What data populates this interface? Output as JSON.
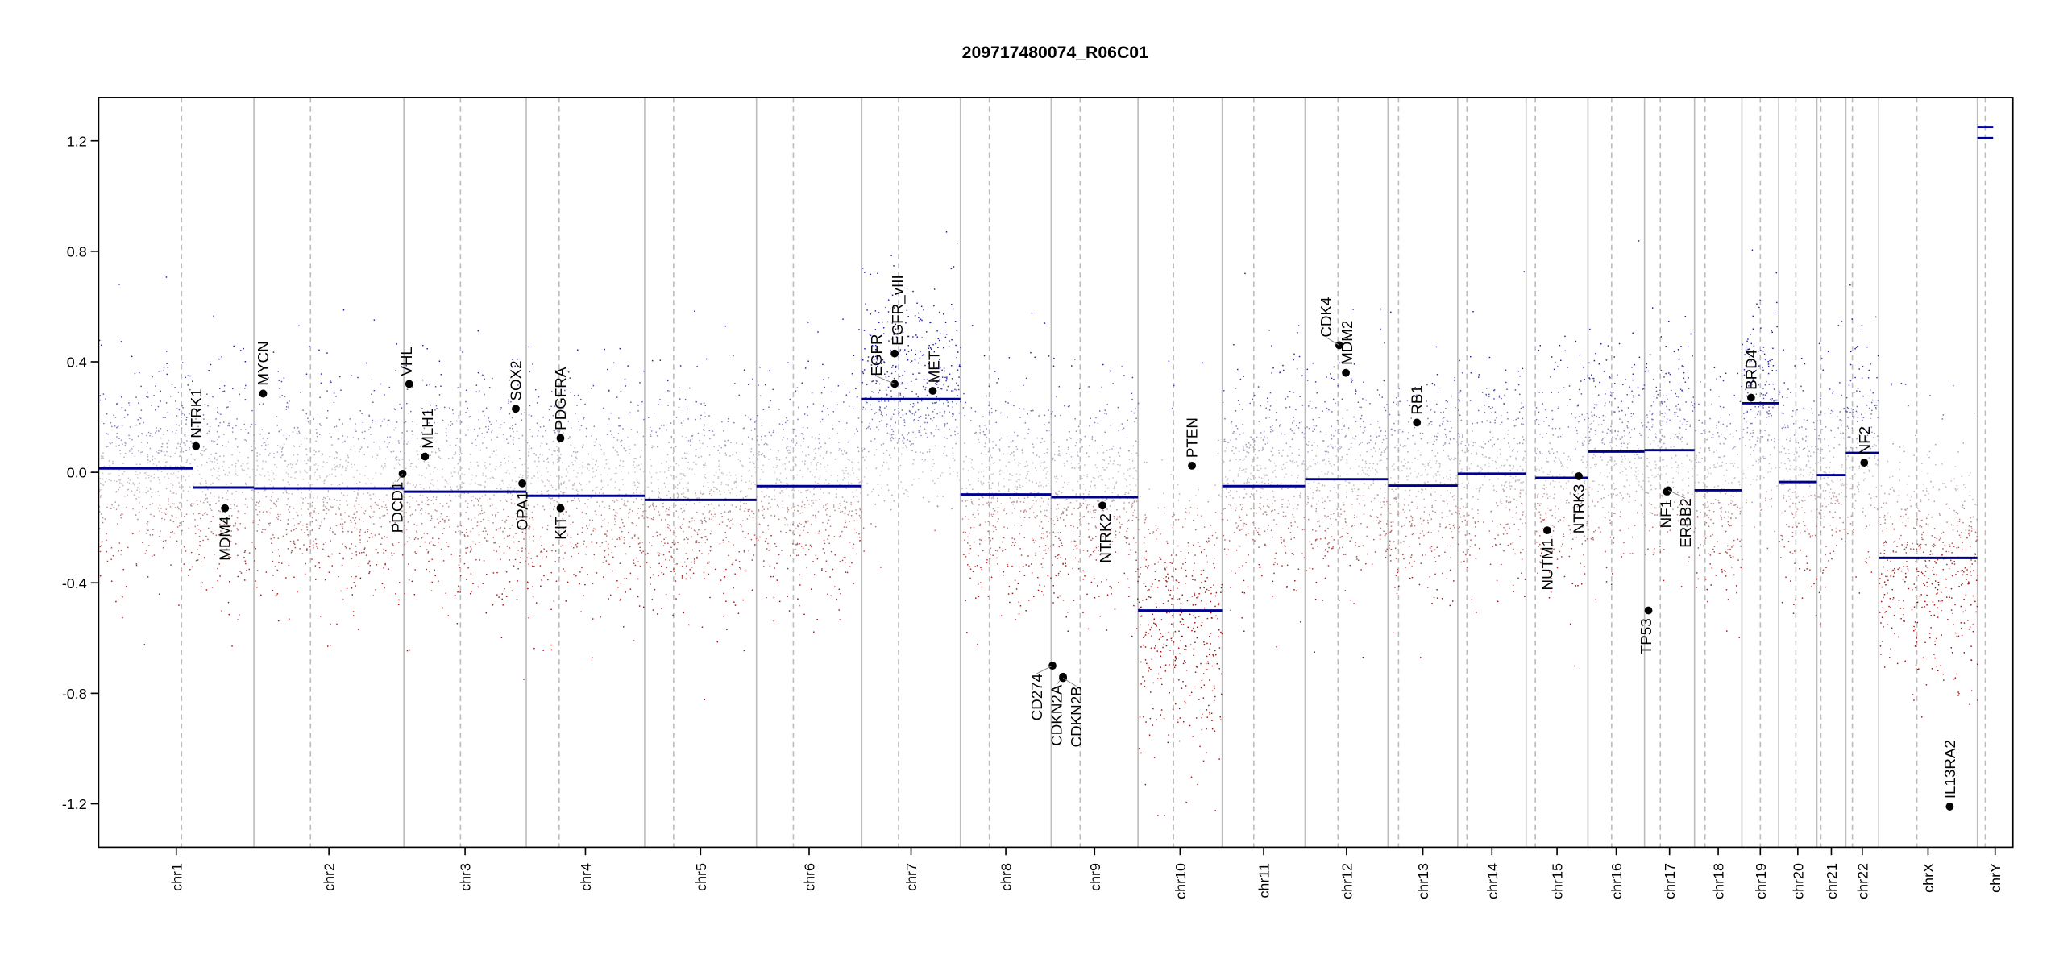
{
  "chart_data": {
    "type": "scatter",
    "title": "209717480074_R06C01",
    "xlabel": "",
    "ylabel": "",
    "ylim": [
      -1.35,
      1.35
    ],
    "yticks": [
      "1.2",
      "0.8",
      "0.4",
      "0.0",
      "-0.4",
      "-0.8",
      "-1.2"
    ],
    "ytick_values": [
      1.2,
      0.8,
      0.4,
      0.0,
      -0.4,
      -0.8,
      -1.2
    ],
    "chromosomes": [
      "chr1",
      "chr2",
      "chr3",
      "chr4",
      "chr5",
      "chr6",
      "chr7",
      "chr8",
      "chr9",
      "chr10",
      "chr11",
      "chr12",
      "chr13",
      "chr14",
      "chr15",
      "chr16",
      "chr17",
      "chr18",
      "chr19",
      "chr20",
      "chr21",
      "chr22",
      "chrX",
      "chrY"
    ],
    "segments": [
      {
        "chr": "chr1",
        "part": "p",
        "value": 0.014
      },
      {
        "chr": "chr1",
        "part": "q",
        "value": -0.055
      },
      {
        "chr": "chr2",
        "value": -0.058
      },
      {
        "chr": "chr3",
        "value": -0.07
      },
      {
        "chr": "chr4",
        "value": -0.085
      },
      {
        "chr": "chr5",
        "value": -0.1
      },
      {
        "chr": "chr6",
        "value": -0.05
      },
      {
        "chr": "chr7",
        "value": 0.265
      },
      {
        "chr": "chr8",
        "value": -0.08
      },
      {
        "chr": "chr9",
        "value": -0.09
      },
      {
        "chr": "chr10",
        "value": -0.5
      },
      {
        "chr": "chr11",
        "value": -0.05
      },
      {
        "chr": "chr12",
        "value": -0.025
      },
      {
        "chr": "chr13",
        "value": -0.048
      },
      {
        "chr": "chr14",
        "value": -0.005
      },
      {
        "chr": "chr15",
        "value": -0.02
      },
      {
        "chr": "chr16",
        "value": 0.075
      },
      {
        "chr": "chr17",
        "value": 0.08
      },
      {
        "chr": "chr18",
        "value": -0.065
      },
      {
        "chr": "chr19",
        "value": 0.25
      },
      {
        "chr": "chr20",
        "value": -0.035
      },
      {
        "chr": "chr21",
        "value": -0.01
      },
      {
        "chr": "chr22",
        "value": 0.07
      },
      {
        "chr": "chrX",
        "value": -0.31
      },
      {
        "chr": "chrY",
        "part": "a",
        "value": 1.25
      },
      {
        "chr": "chrY",
        "part": "b",
        "value": 1.21
      }
    ],
    "genes": [
      {
        "name": "NTRK1",
        "chr": "chr1",
        "value": 0.095,
        "label": "above"
      },
      {
        "name": "MDM4",
        "chr": "chr1",
        "value": -0.13,
        "label": "below"
      },
      {
        "name": "MYCN",
        "chr": "chr2",
        "value": 0.285,
        "label": "above"
      },
      {
        "name": "PDCD1",
        "chr": "chr2",
        "value": -0.005,
        "label": "below"
      },
      {
        "name": "VHL",
        "chr": "chr3",
        "value": 0.32,
        "label": "above"
      },
      {
        "name": "MLH1",
        "chr": "chr3",
        "value": 0.057,
        "label": "above"
      },
      {
        "name": "SOX2",
        "chr": "chr3",
        "value": 0.23,
        "label": "above"
      },
      {
        "name": "OPA1",
        "chr": "chr3",
        "value": -0.04,
        "label": "below"
      },
      {
        "name": "PDGFRA",
        "chr": "chr4",
        "value": 0.124,
        "label": "above"
      },
      {
        "name": "KIT",
        "chr": "chr4",
        "value": -0.13,
        "label": "below"
      },
      {
        "name": "EGFR",
        "chr": "chr7",
        "value": 0.32,
        "label": "above"
      },
      {
        "name": "EGFR_vIII",
        "chr": "chr7",
        "value": 0.43,
        "label": "above"
      },
      {
        "name": "MET",
        "chr": "chr7",
        "value": 0.295,
        "label": "above"
      },
      {
        "name": "CD274",
        "chr": "chr9",
        "value": -0.7,
        "label": "below"
      },
      {
        "name": "CDKN2A",
        "chr": "chr9",
        "value": -0.74,
        "label": "below"
      },
      {
        "name": "CDKN2B",
        "chr": "chr9",
        "value": -0.745,
        "label": "below"
      },
      {
        "name": "NTRK2",
        "chr": "chr9",
        "value": -0.12,
        "label": "below"
      },
      {
        "name": "PTEN",
        "chr": "chr10",
        "value": 0.024,
        "label": "above"
      },
      {
        "name": "CDK4",
        "chr": "chr12",
        "value": 0.46,
        "label": "above"
      },
      {
        "name": "MDM2",
        "chr": "chr12",
        "value": 0.36,
        "label": "above"
      },
      {
        "name": "RB1",
        "chr": "chr13",
        "value": 0.18,
        "label": "above"
      },
      {
        "name": "NUTM1",
        "chr": "chr15",
        "value": -0.21,
        "label": "below"
      },
      {
        "name": "NTRK3",
        "chr": "chr15",
        "value": -0.014,
        "label": "below"
      },
      {
        "name": "TP53",
        "chr": "chr17",
        "value": -0.5,
        "label": "below"
      },
      {
        "name": "NF1",
        "chr": "chr17",
        "value": -0.07,
        "label": "below"
      },
      {
        "name": "ERBB2",
        "chr": "chr17",
        "value": -0.065,
        "label": "below"
      },
      {
        "name": "BRD4",
        "chr": "chr19",
        "value": 0.27,
        "label": "above"
      },
      {
        "name": "NF2",
        "chr": "chr22",
        "value": 0.035,
        "label": "above"
      },
      {
        "name": "IL13RA2",
        "chrX": "chrX",
        "chr": "chrX",
        "value": -1.21,
        "label": "above"
      }
    ],
    "probe_noise_sd": 0.24,
    "probe_clip": [
      -1.24,
      0.97
    ],
    "colors": {
      "gain": "#1a1aa0",
      "neutral": "#c8c8c8",
      "loss": "#a01010",
      "segment": "#000090",
      "boundary": "#bdbdbd",
      "centromere": "#bdbdbd",
      "gene": "#000000"
    },
    "grid": false,
    "legend": "none"
  }
}
